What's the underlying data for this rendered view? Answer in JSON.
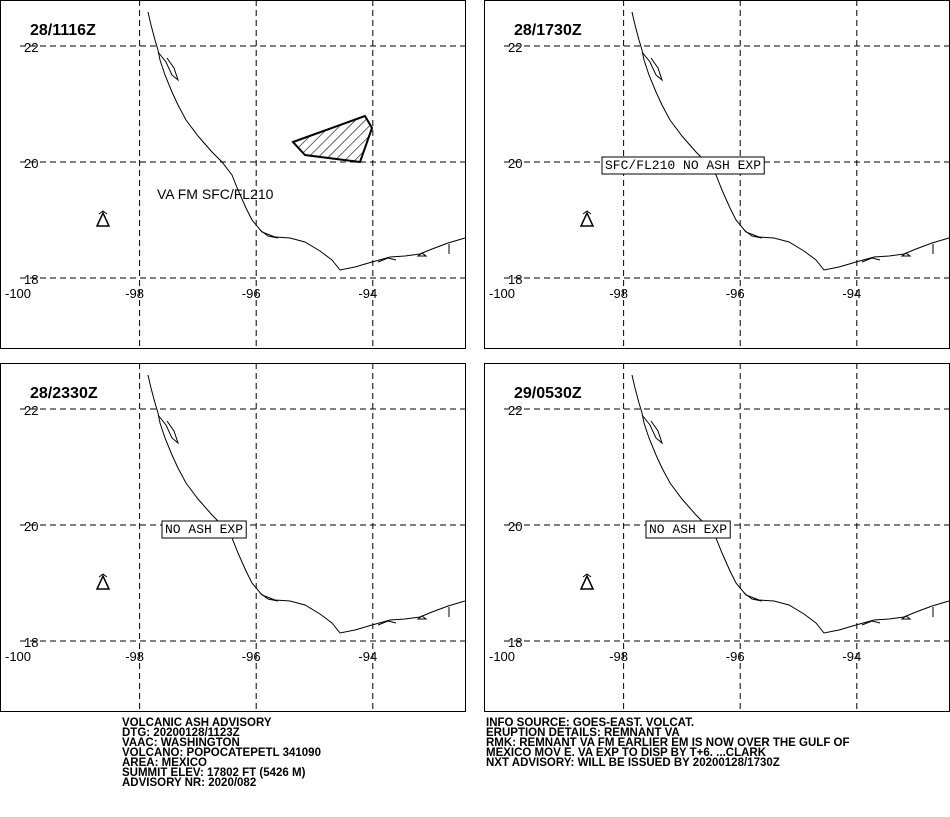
{
  "panels": [
    {
      "time": "28/1116Z",
      "label": "VA FM SFC/FL210",
      "boxed": false,
      "ash_area": true
    },
    {
      "time": "28/1730Z",
      "label": "SFC/FL210 NO ASH EXP",
      "boxed": true,
      "ash_area": false
    },
    {
      "time": "28/2330Z",
      "label": "NO ASH EXP",
      "boxed": true,
      "ash_area": false
    },
    {
      "time": "29/0530Z",
      "label": "NO ASH EXP",
      "boxed": true,
      "ash_area": false
    }
  ],
  "lat_ticks": [
    22,
    20,
    18
  ],
  "lon_ticks": [
    -100,
    -98,
    -96,
    -94
  ],
  "advisory_left": [
    "VOLCANIC ASH ADVISORY",
    "DTG: 20200128/1123Z",
    "VAAC: WASHINGTON",
    "VOLCANO: POPOCATEPETL 341090",
    "AREA: MEXICO",
    "SUMMIT ELEV: 17802 FT (5426 M)",
    "ADVISORY NR: 2020/082"
  ],
  "advisory_right": [
    "INFO SOURCE: GOES-EAST. VOLCAT.",
    "ERUPTION DETAILS: REMNANT VA",
    "RMK: REMNANT VA FM EARLIER EM IS NOW OVER THE GULF OF",
    "MEXICO MOV E. VA EXP TO DISP BY T+6. ...CLARK",
    "NXT ADVISORY: WILL BE ISSUED BY 20200128/1730Z"
  ]
}
